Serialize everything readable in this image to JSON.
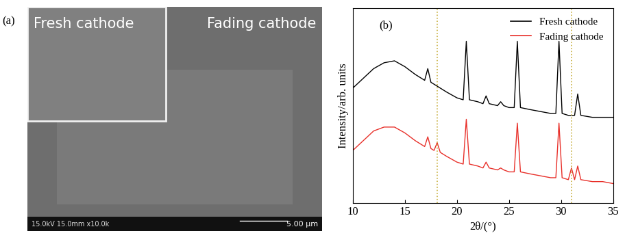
{
  "image_panel": {
    "label": "(a)",
    "inset_text": "Fresh cathode",
    "main_text": "Fading cathode",
    "info_text": "15.0kV 15.0mm x10.0k",
    "scale_text": "5.00 μm"
  },
  "chart_data": {
    "type": "line",
    "label": "(b)",
    "xlabel": "2θ/(°)",
    "ylabel": "Intensity/arb. units",
    "x": [
      10,
      11,
      12,
      13,
      14,
      15,
      16,
      16.9,
      17.2,
      17.5,
      17.8,
      18.1,
      18.4,
      19,
      20,
      20.6,
      20.9,
      21.2,
      22,
      22.5,
      22.8,
      23.1,
      23.9,
      24.2,
      24.5,
      25,
      25.5,
      25.8,
      26.1,
      27,
      28,
      29,
      29.5,
      29.8,
      30.1,
      30.7,
      31.0,
      31.3,
      31.6,
      31.9,
      33,
      34,
      35
    ],
    "series": [
      {
        "name": "Fresh cathode",
        "color": "#000000",
        "values": [
          59,
          64,
          69,
          72,
          73,
          70,
          66,
          63,
          69,
          62,
          61,
          60,
          59,
          57,
          54,
          53,
          83,
          53,
          52,
          51,
          55,
          51,
          50,
          52,
          50,
          49,
          49,
          83,
          49,
          48,
          47,
          46,
          46,
          83,
          46,
          45,
          45,
          45,
          56,
          45,
          44,
          44,
          44
        ]
      },
      {
        "name": "Fading cathode",
        "color": "#e8302a",
        "values": [
          27,
          32,
          37,
          39,
          39,
          36,
          32,
          29,
          34,
          28,
          27,
          31,
          26,
          24,
          21,
          20,
          43,
          20,
          19,
          18,
          21,
          18,
          17,
          18,
          17,
          16,
          16,
          41,
          16,
          15,
          14,
          13,
          13,
          41,
          13,
          12,
          18,
          12,
          19,
          12,
          11,
          11,
          10
        ]
      }
    ],
    "xlim": [
      10,
      35
    ],
    "xticks": [
      10,
      15,
      20,
      25,
      30,
      35
    ],
    "ylim": [
      0,
      100
    ],
    "tick_labels": "x",
    "legend": "upper right",
    "vlines": [
      18.1,
      31.0
    ]
  }
}
